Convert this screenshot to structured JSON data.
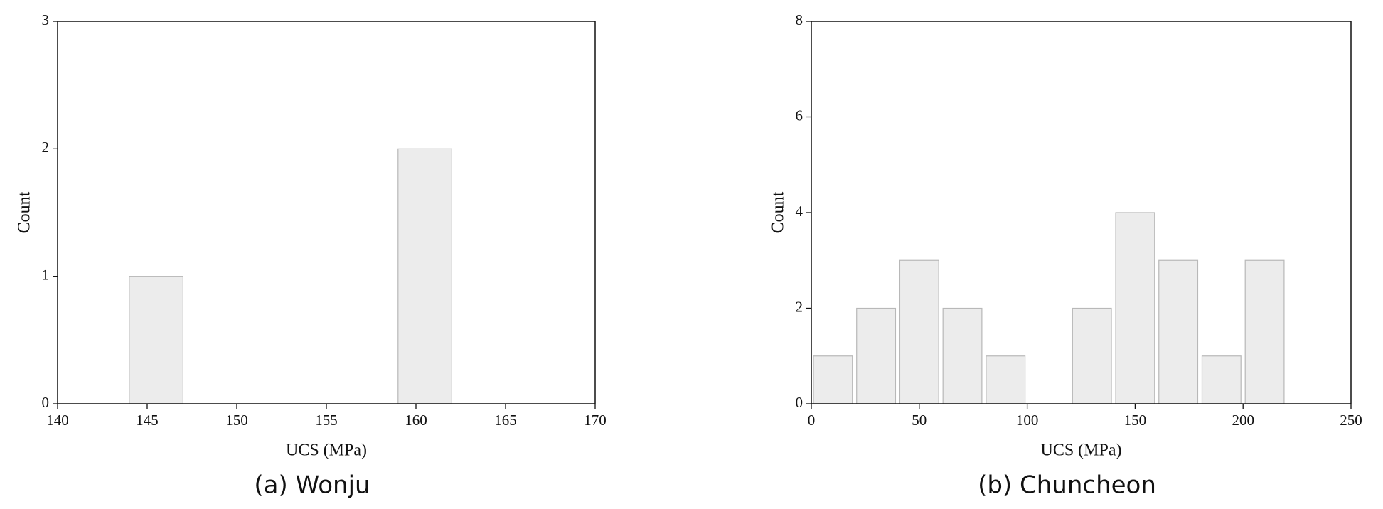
{
  "chart_data": [
    {
      "type": "histogram",
      "caption": "(a) Wonju",
      "x_label": "UCS (MPa)",
      "y_label": "Count",
      "bins": [
        144,
        147,
        150,
        153,
        156,
        159,
        162
      ],
      "counts": [
        1,
        0,
        0,
        0,
        0,
        2
      ],
      "color": "#ececec",
      "xlim": [
        140,
        170
      ],
      "xticks": [
        140,
        145,
        150,
        155,
        160,
        165,
        170
      ],
      "ylim": [
        0,
        3
      ],
      "yticks": [
        0,
        1,
        2,
        3
      ]
    },
    {
      "type": "histogram",
      "caption": "(b) Chuncheon",
      "x_label": "UCS (MPa)",
      "y_label": "Count",
      "bins": [
        0,
        20,
        40,
        60,
        80,
        100,
        120,
        140,
        160,
        180,
        200,
        220
      ],
      "counts": [
        1,
        2,
        3,
        2,
        1,
        0,
        2,
        4,
        3,
        1,
        3
      ],
      "color": "#ececec",
      "xlim": [
        0,
        250
      ],
      "xticks": [
        0,
        50,
        100,
        150,
        200,
        250
      ],
      "ylim": [
        0,
        8
      ],
      "yticks": [
        0,
        2,
        4,
        6,
        8
      ]
    }
  ]
}
